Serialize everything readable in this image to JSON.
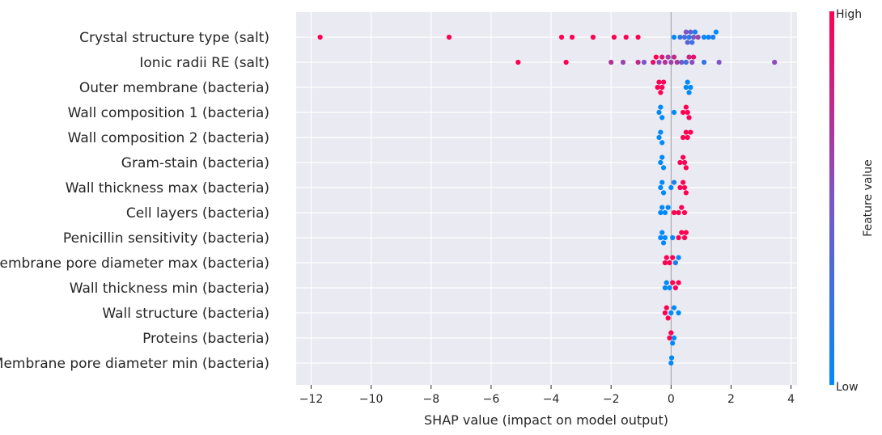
{
  "chart_data": {
    "type": "scatter",
    "subtype": "shap-beeswarm",
    "title": "",
    "xlabel": "SHAP value (impact on model output)",
    "ylabel": "",
    "xlim": [
      -12.5,
      4.2
    ],
    "xticks": [
      -12,
      -10,
      -8,
      -6,
      -4,
      -2,
      0,
      2,
      4
    ],
    "xtick_labels": [
      "−12",
      "−10",
      "−8",
      "−6",
      "−4",
      "−2",
      "0",
      "2",
      "4"
    ],
    "grid": true,
    "colors": {
      "low": "#008afb",
      "mid": "#7d55c5",
      "high": "#ff0052",
      "panel": "#eaeaf2",
      "grid": "#ffffff",
      "zero_line": "#999999"
    },
    "colorbar": {
      "label": "Feature value",
      "high_label": "High",
      "low_label": "Low"
    },
    "features": [
      {
        "name": "Crystal structure type (salt)",
        "points": [
          [
            -11.7,
            1
          ],
          [
            -7.4,
            1
          ],
          [
            -3.65,
            1
          ],
          [
            -3.3,
            1
          ],
          [
            -2.6,
            1
          ],
          [
            -1.9,
            1
          ],
          [
            -1.5,
            1
          ],
          [
            -1.1,
            1
          ],
          [
            0.1,
            0
          ],
          [
            0.3,
            0.2
          ],
          [
            0.45,
            0.3
          ],
          [
            0.5,
            0.5
          ],
          [
            0.55,
            0.35
          ],
          [
            0.6,
            0.15
          ],
          [
            0.65,
            0.4
          ],
          [
            0.7,
            0.25
          ],
          [
            0.75,
            0.5
          ],
          [
            0.8,
            0.1
          ],
          [
            0.9,
            0.6
          ],
          [
            1.1,
            0
          ],
          [
            1.25,
            0.05
          ],
          [
            1.4,
            0.1
          ],
          [
            1.5,
            0
          ]
        ]
      },
      {
        "name": "Ionic radii RE (salt)",
        "points": [
          [
            -5.1,
            1
          ],
          [
            -3.5,
            1
          ],
          [
            -2.0,
            0.7
          ],
          [
            -1.6,
            0.6
          ],
          [
            -1.1,
            0.75
          ],
          [
            -0.9,
            0.5
          ],
          [
            -0.6,
            0.9
          ],
          [
            -0.5,
            1
          ],
          [
            -0.4,
            0.55
          ],
          [
            -0.3,
            0.85
          ],
          [
            -0.2,
            0.7
          ],
          [
            -0.1,
            0.65
          ],
          [
            0,
            0.6
          ],
          [
            0.1,
            0.75
          ],
          [
            0.2,
            0.7
          ],
          [
            0.35,
            0.4
          ],
          [
            0.5,
            0.3
          ],
          [
            0.6,
            0.8
          ],
          [
            0.7,
            0.55
          ],
          [
            0.75,
            0.9
          ],
          [
            1.1,
            0.2
          ],
          [
            1.6,
            0.5
          ],
          [
            3.45,
            0.55
          ]
        ]
      },
      {
        "name": "Outer membrane (bacteria)",
        "points": [
          [
            -0.45,
            1
          ],
          [
            -0.4,
            1
          ],
          [
            -0.35,
            1
          ],
          [
            -0.3,
            1
          ],
          [
            -0.25,
            1
          ],
          [
            0.5,
            0
          ],
          [
            0.55,
            0
          ],
          [
            0.6,
            0
          ],
          [
            0.65,
            0
          ]
        ]
      },
      {
        "name": "Wall composition 1 (bacteria)",
        "points": [
          [
            -0.4,
            0
          ],
          [
            -0.35,
            0
          ],
          [
            -0.3,
            0
          ],
          [
            0.1,
            0
          ],
          [
            0.4,
            1
          ],
          [
            0.5,
            1
          ],
          [
            0.55,
            1
          ],
          [
            0.6,
            1
          ]
        ]
      },
      {
        "name": "Wall composition 2 (bacteria)",
        "points": [
          [
            -0.4,
            0
          ],
          [
            -0.35,
            0
          ],
          [
            -0.3,
            0
          ],
          [
            0.4,
            1
          ],
          [
            0.5,
            1
          ],
          [
            0.55,
            1
          ],
          [
            0.65,
            1
          ]
        ]
      },
      {
        "name": "Gram-stain (bacteria)",
        "points": [
          [
            -0.35,
            0
          ],
          [
            -0.3,
            0
          ],
          [
            -0.25,
            0
          ],
          [
            0.3,
            1
          ],
          [
            0.4,
            1
          ],
          [
            0.45,
            1
          ],
          [
            0.5,
            1
          ]
        ]
      },
      {
        "name": "Wall thickness max (bacteria)",
        "points": [
          [
            -0.35,
            0
          ],
          [
            -0.3,
            0
          ],
          [
            -0.25,
            0
          ],
          [
            0,
            0
          ],
          [
            0.1,
            0.1
          ],
          [
            0.3,
            1
          ],
          [
            0.4,
            1
          ],
          [
            0.45,
            1
          ],
          [
            0.5,
            1
          ]
        ]
      },
      {
        "name": "Cell layers (bacteria)",
        "points": [
          [
            -0.35,
            0
          ],
          [
            -0.3,
            0
          ],
          [
            -0.2,
            0
          ],
          [
            -0.1,
            0
          ],
          [
            0.1,
            1
          ],
          [
            0.25,
            1
          ],
          [
            0.35,
            1
          ],
          [
            0.45,
            1
          ]
        ]
      },
      {
        "name": "Penicillin sensitivity (bacteria)",
        "points": [
          [
            -0.35,
            0
          ],
          [
            -0.3,
            0
          ],
          [
            -0.25,
            0
          ],
          [
            -0.2,
            0
          ],
          [
            0.05,
            0
          ],
          [
            0.25,
            1
          ],
          [
            0.35,
            1
          ],
          [
            0.45,
            1
          ],
          [
            0.5,
            1
          ]
        ]
      },
      {
        "name": "Membrane pore diameter max (bacteria)",
        "points": [
          [
            -0.2,
            1
          ],
          [
            -0.15,
            1
          ],
          [
            -0.05,
            1
          ],
          [
            0.05,
            1
          ],
          [
            0.15,
            0.1
          ],
          [
            0.25,
            0
          ]
        ]
      },
      {
        "name": "Wall thickness min (bacteria)",
        "points": [
          [
            -0.2,
            0
          ],
          [
            -0.15,
            0
          ],
          [
            -0.05,
            0
          ],
          [
            0.05,
            1
          ],
          [
            0.15,
            1
          ],
          [
            0.25,
            1
          ]
        ]
      },
      {
        "name": "Wall structure (bacteria)",
        "points": [
          [
            -0.2,
            1
          ],
          [
            -0.15,
            1
          ],
          [
            -0.1,
            1
          ],
          [
            0,
            0
          ],
          [
            0.1,
            0
          ],
          [
            0.25,
            0
          ]
        ]
      },
      {
        "name": "Proteins (bacteria)",
        "points": [
          [
            -0.05,
            1
          ],
          [
            0,
            1
          ],
          [
            0.05,
            0
          ],
          [
            0.1,
            0
          ]
        ]
      },
      {
        "name": "Membrane pore diameter min (bacteria)",
        "points": [
          [
            0,
            0
          ],
          [
            0.02,
            0
          ]
        ]
      }
    ]
  }
}
